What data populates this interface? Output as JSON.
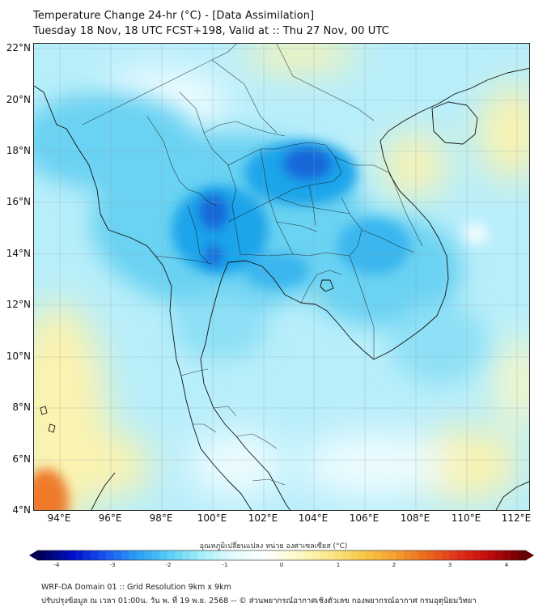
{
  "header": {
    "title_line1": "Temperature Change 24-hr (°C) - [Data Assimilation]",
    "title_line2": "Tuesday 18 Nov, 18 UTC FCST+198, Valid at :: Thu 27 Nov, 00 UTC"
  },
  "map": {
    "lat_labels": [
      "22°N",
      "20°N",
      "18°N",
      "16°N",
      "14°N",
      "12°N",
      "10°N",
      "8°N",
      "6°N",
      "4°N"
    ],
    "lon_labels": [
      "94°E",
      "96°E",
      "98°E",
      "100°E",
      "102°E",
      "104°E",
      "106°E",
      "108°E",
      "110°E",
      "112°E"
    ],
    "field_colors": {
      "ocean_base": "#b8eefa",
      "land_cool": "#6ad2f2",
      "strong_cool": "#1fa5ea",
      "deep_cool": "#1466d8",
      "neutral": "#eefcff",
      "warm": "#fbf3b0",
      "hot": "#ef7a2a"
    }
  },
  "colorbar": {
    "title": "อุณหภูมิเปลี่ยนแปลง หน่วย องศาเซลเซียส (°C)",
    "tick_labels": [
      "-4",
      "-3",
      "-2",
      "-1",
      "0",
      "1",
      "2",
      "3",
      "4"
    ],
    "colors": [
      "#00005a",
      "#0010c8",
      "#1a55f0",
      "#2b9ef5",
      "#58cef5",
      "#a6eef8",
      "#e4fbfd",
      "#ffffff",
      "#fff9c8",
      "#fbe78a",
      "#f7c94a",
      "#f3a230",
      "#ec6a1e",
      "#e0301a",
      "#c00a0a",
      "#6a0000"
    ]
  },
  "footer": {
    "line1": "WRF-DA Domain 01 :: Grid Resolution 9km x 9km",
    "line2": "ปรับปรุงข้อมูล ณ เวลา 01:00น. วัน พ. ที่ 19 พ.ย. 2568 -- © ส่วนพยากรณ์อากาศเชิงตัวเลข กองพยากรณ์อากาศ กรมอุตุนิยมวิทยา"
  }
}
